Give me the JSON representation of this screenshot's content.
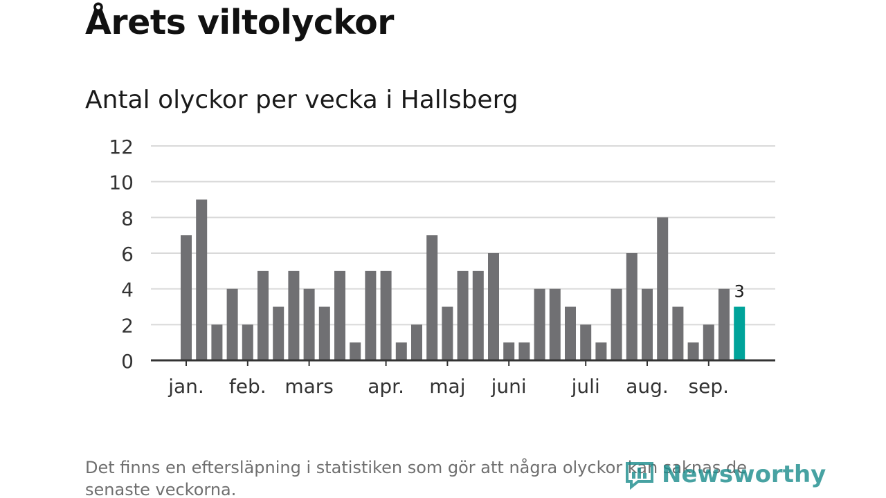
{
  "title": "Årets viltolyckor",
  "subtitle": "Antal olyckor per vecka i Hallsberg",
  "footnote": "Det finns en eftersläpning i statistiken som gör att några olyckor kan saknas de senaste veckorna.",
  "logo": {
    "text": "Newsworthy",
    "icon": "newsworthy-logo-icon"
  },
  "colors": {
    "bar": "#707073",
    "highlight": "#00a39a",
    "grid": "#d9d9d9",
    "axis": "#333333",
    "logo": "#1a8c8c"
  },
  "chart_data": {
    "type": "bar",
    "title": "Antal olyckor per vecka i Hallsberg",
    "xlabel": "",
    "ylabel": "",
    "ylim": [
      0,
      12
    ],
    "yticks": [
      0,
      2,
      4,
      6,
      8,
      10,
      12
    ],
    "grid": true,
    "months": [
      {
        "label": "jan.",
        "start_week": 1
      },
      {
        "label": "feb.",
        "start_week": 5
      },
      {
        "label": "mars",
        "start_week": 9
      },
      {
        "label": "apr.",
        "start_week": 14
      },
      {
        "label": "maj",
        "start_week": 18
      },
      {
        "label": "juni",
        "start_week": 22
      },
      {
        "label": "juli",
        "start_week": 27
      },
      {
        "label": "aug.",
        "start_week": 31
      },
      {
        "label": "sep.",
        "start_week": 35
      }
    ],
    "values": [
      7,
      9,
      2,
      4,
      2,
      5,
      3,
      5,
      4,
      3,
      5,
      1,
      5,
      5,
      1,
      2,
      7,
      3,
      5,
      5,
      6,
      1,
      1,
      4,
      4,
      3,
      2,
      1,
      4,
      6,
      4,
      8,
      3,
      1,
      2,
      4,
      3
    ],
    "highlight_last": true,
    "highlight_label": "3"
  }
}
